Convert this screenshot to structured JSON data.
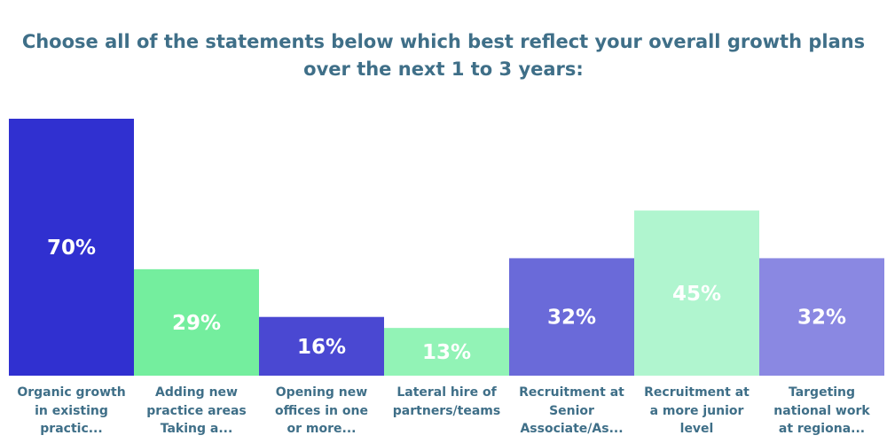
{
  "chart_data": {
    "type": "bar",
    "title_lines": [
      "Choose all of the statements below which best reflect your overall growth plans",
      "over the next 1 to 3 years:"
    ],
    "categories": [
      [
        "Organic growth",
        "in existing",
        "practic..."
      ],
      [
        "Adding new",
        "practice areas",
        "Taking a..."
      ],
      [
        "Opening new",
        "offices in one",
        "or more..."
      ],
      [
        "Lateral hire of",
        "partners/teams"
      ],
      [
        "Recruitment at",
        "Senior",
        "Associate/As..."
      ],
      [
        "Recruitment at",
        "a more junior",
        "level"
      ],
      [
        "Targeting",
        "national work",
        "at regiona..."
      ]
    ],
    "values": [
      70,
      29,
      16,
      13,
      32,
      45,
      32
    ],
    "value_labels": [
      "70%",
      "29%",
      "16%",
      "13%",
      "32%",
      "45%",
      "32%"
    ],
    "colors": [
      "#3030d0",
      "#74ee9e",
      "#4a48d2",
      "#92f3b6",
      "#6a6ad9",
      "#b0f5cf",
      "#8a88e2"
    ],
    "ylim": [
      0,
      70
    ],
    "grid": false,
    "legend": "none"
  }
}
